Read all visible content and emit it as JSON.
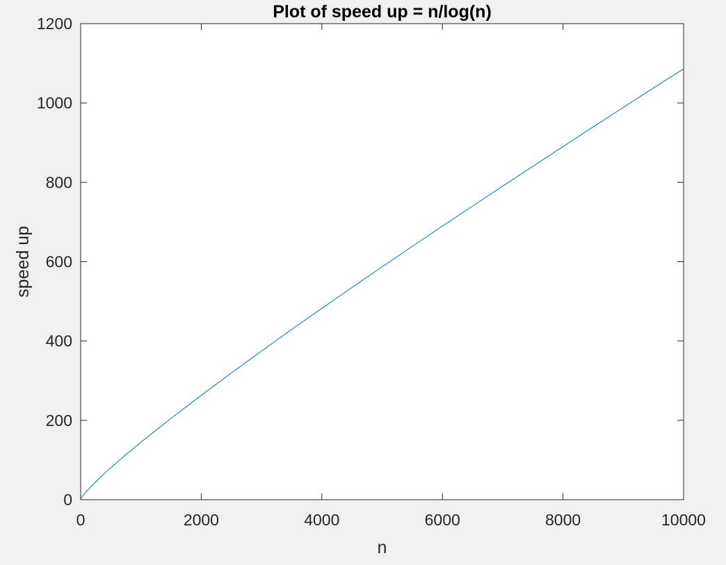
{
  "chart_data": {
    "type": "line",
    "title": "Plot of speed up = n/log(n)",
    "xlabel": "n",
    "ylabel": "speed up",
    "xlim": [
      0,
      10000
    ],
    "ylim": [
      0,
      1200
    ],
    "xticks": [
      0,
      2000,
      4000,
      6000,
      8000,
      10000
    ],
    "yticks": [
      0,
      200,
      400,
      600,
      800,
      1000,
      1200
    ],
    "grid": false,
    "legend": "none",
    "series": [
      {
        "color": "#0072bd",
        "x": [
          2,
          50,
          100,
          200,
          300,
          500,
          750,
          1000,
          1500,
          2000,
          2500,
          3000,
          3500,
          4000,
          4500,
          5000,
          5500,
          6000,
          6500,
          7000,
          7500,
          8000,
          8500,
          9000,
          9500,
          10000
        ],
        "y": [
          2.9,
          12.8,
          21.7,
          37.7,
          52.6,
          80.5,
          113.3,
          144.8,
          205.1,
          263.1,
          319.5,
          374.7,
          429.2,
          482.3,
          535.0,
          587.0,
          638.5,
          689.7,
          740.2,
          790.4,
          840.3,
          890.1,
          939.5,
          988.8,
          1037.7,
          1085.7
        ]
      }
    ],
    "colors": {
      "figure_bg": "#f0f0f0",
      "axes_bg": "#ffffff",
      "axis_line": "#262626",
      "series": "#0072bd"
    }
  }
}
